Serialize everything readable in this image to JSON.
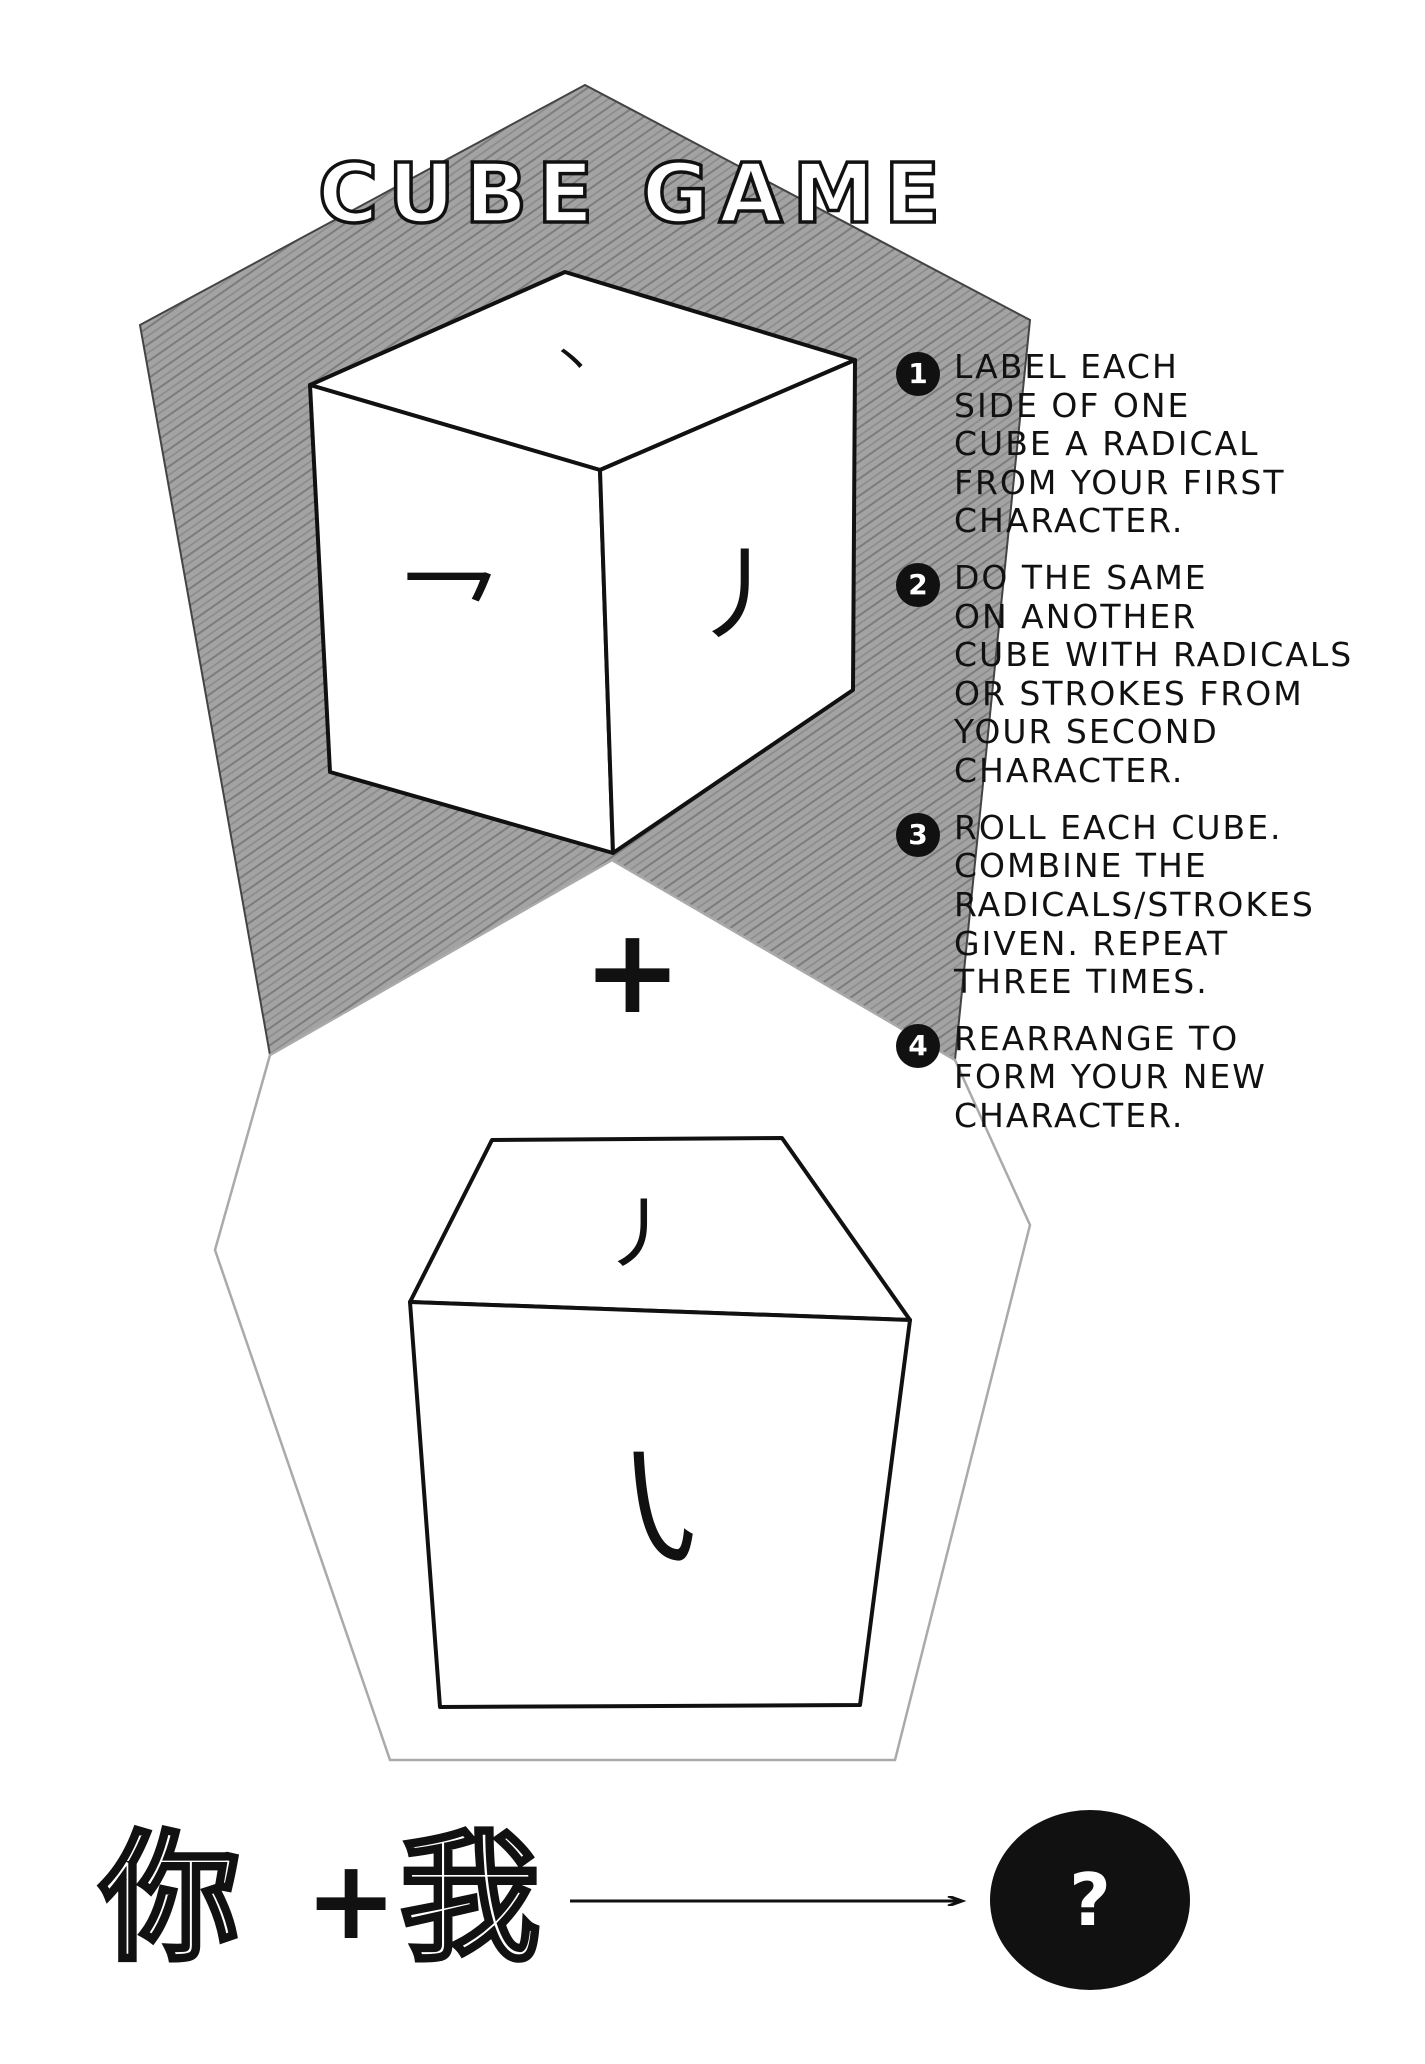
{
  "title": "CUBE GAME",
  "cube_top": {
    "top_face_mark": "丶",
    "left_face_mark": "乛",
    "right_face_mark": "丿"
  },
  "plus_symbol": "+",
  "cube_bottom": {
    "top_face_mark": "㇓",
    "front_face_mark": "㇂"
  },
  "instructions": [
    {
      "number": "1",
      "text": "Label each\nside of one\ncube a radical\nfrom your first\ncharacter."
    },
    {
      "number": "2",
      "text": "Do the same\non another\ncube with radicals\nor strokes from\nyour second\ncharacter."
    },
    {
      "number": "3",
      "text": "Roll each cube.\nCombine the\nradicals/strokes\ngiven. Repeat\nthree times."
    },
    {
      "number": "4",
      "text": "Rearrange to\nform your new\ncharacter."
    }
  ],
  "equation": {
    "first_character": "你",
    "operator": "+",
    "second_character": "我",
    "result": "?"
  },
  "colors": {
    "ink": "#111111",
    "shade": "#9a9a9a",
    "outline": "#aaaaaa",
    "paper": "#ffffff"
  }
}
